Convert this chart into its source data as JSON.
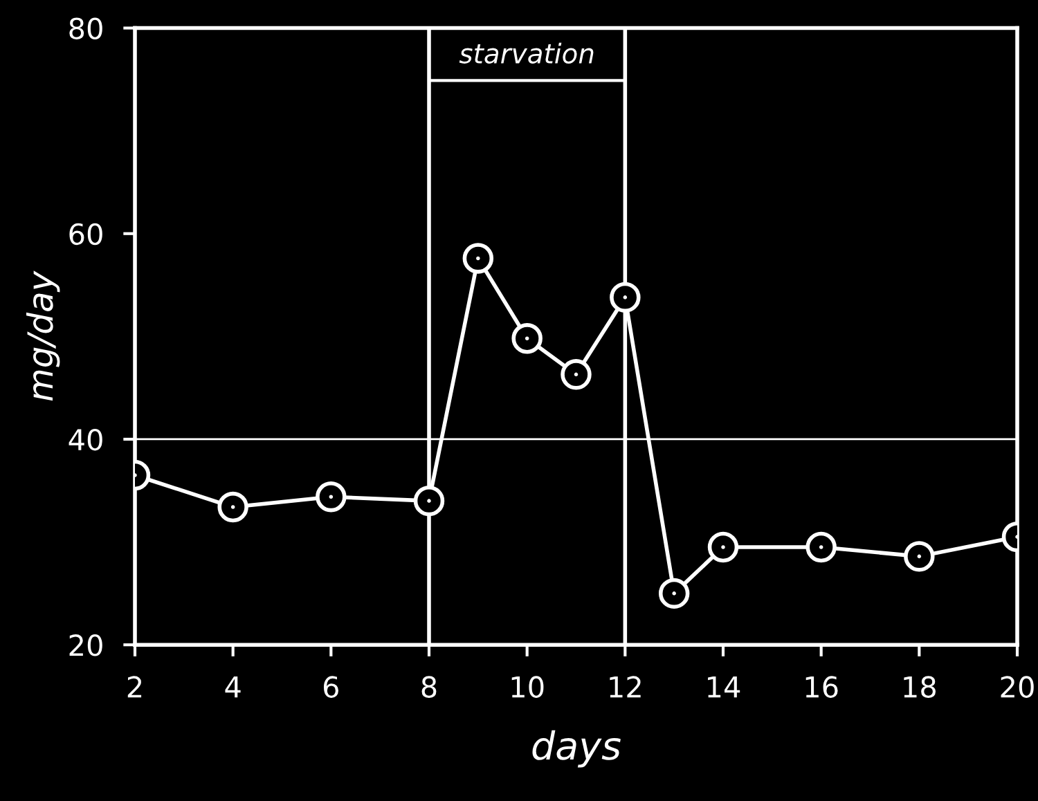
{
  "chart_data": {
    "type": "line",
    "xlabel": "days",
    "ylabel": "mg/day",
    "x": [
      2,
      4,
      6,
      8,
      9,
      10,
      11,
      12,
      13,
      14,
      16,
      18,
      20
    ],
    "series": [
      {
        "color": "#ffffff",
        "values": [
          36.5,
          33.4,
          34.4,
          34.0,
          57.6,
          49.8,
          46.3,
          53.8,
          25.0,
          29.5,
          29.5,
          28.6,
          30.5
        ]
      }
    ],
    "xlim": [
      2,
      20
    ],
    "xticks": [
      2,
      4,
      6,
      8,
      10,
      12,
      14,
      16,
      18,
      20
    ],
    "ylim": [
      20,
      80
    ],
    "yticks": [
      20,
      40,
      60,
      80
    ],
    "ref_lines": [
      {
        "axis": "x",
        "value": 8,
        "color": "#ffffff"
      },
      {
        "axis": "x",
        "value": 12,
        "color": "#ffffff"
      },
      {
        "axis": "y",
        "value": 40,
        "color": "#ffffff"
      }
    ],
    "annotations": [
      "starvation"
    ],
    "marker": "circle",
    "line_style": "solid",
    "grid": false
  }
}
